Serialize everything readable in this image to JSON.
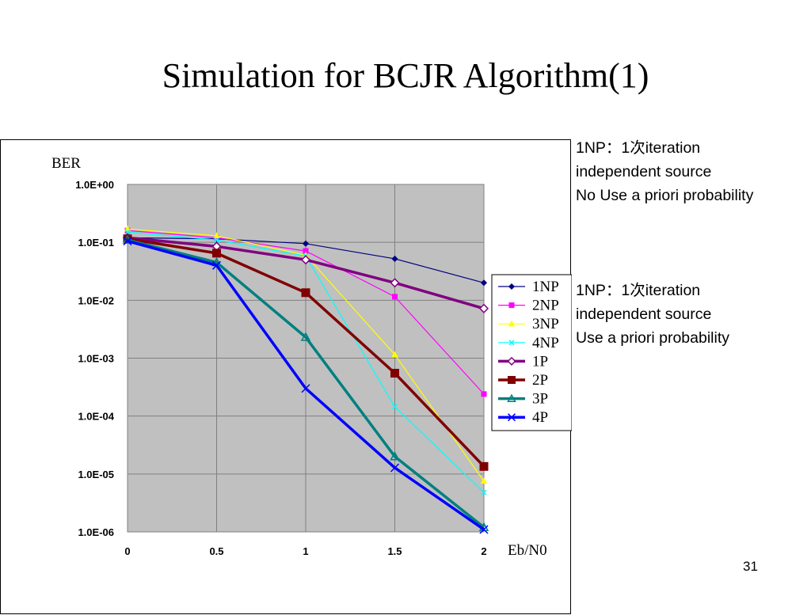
{
  "slide": {
    "title": "Simulation for BCJR Algorithm(1)",
    "page_number": "31"
  },
  "notes": [
    {
      "lines": [
        "1NP：1次iteration",
        "independent source",
        "No Use a priori probability"
      ]
    },
    {
      "lines": [
        "1NP：1次iteration",
        "independent source",
        "Use a priori probability"
      ]
    }
  ],
  "chart_data": {
    "type": "line",
    "title": "",
    "xlabel": "Eb/N0",
    "ylabel": "BER",
    "yscale": "log",
    "x": [
      0,
      0.5,
      1,
      1.5,
      2
    ],
    "x_tick_labels": [
      "0",
      "0.5",
      "1",
      "1.5",
      "2"
    ],
    "y_tick_values": [
      1,
      0.1,
      0.01,
      0.001,
      0.0001,
      1e-05,
      1e-06
    ],
    "y_tick_labels": [
      "1.0E+00",
      "1.0E-01",
      "1.0E-02",
      "1.0E-03",
      "1.0E-04",
      "1.0E-05",
      "1.0E-06"
    ],
    "xlim": [
      0,
      2
    ],
    "ylim": [
      1e-06,
      1
    ],
    "grid": true,
    "plot_background": "#c0c0c0",
    "legend_position": "right",
    "series": [
      {
        "name": "1NP",
        "color": "#000080",
        "marker": "diamond-filled",
        "line_weight": "thin",
        "values": [
          0.12,
          0.115,
          0.095,
          0.052,
          0.02
        ]
      },
      {
        "name": "2NP",
        "color": "#ff00ff",
        "marker": "square-filled",
        "line_weight": "thin",
        "values": [
          0.16,
          0.12,
          0.071,
          0.0115,
          0.00024
        ]
      },
      {
        "name": "3NP",
        "color": "#ffff00",
        "marker": "triangle-filled",
        "line_weight": "thin",
        "values": [
          0.17,
          0.13,
          0.06,
          0.00115,
          7.5e-06
        ]
      },
      {
        "name": "4NP",
        "color": "#00ffff",
        "marker": "x",
        "line_weight": "thin",
        "values": [
          0.15,
          0.11,
          0.058,
          0.000145,
          4.8e-06
        ]
      },
      {
        "name": "1P",
        "color": "#800080",
        "marker": "diamond-open",
        "line_weight": "thick",
        "values": [
          0.12,
          0.085,
          0.05,
          0.02,
          0.0072
        ]
      },
      {
        "name": "2P",
        "color": "#800000",
        "marker": "square-filled",
        "line_weight": "thick",
        "values": [
          0.115,
          0.065,
          0.0135,
          0.00055,
          1.35e-05
        ]
      },
      {
        "name": "3P",
        "color": "#008080",
        "marker": "triangle-open",
        "line_weight": "thick",
        "values": [
          0.11,
          0.045,
          0.0023,
          2e-05,
          1.2e-06
        ]
      },
      {
        "name": "4P",
        "color": "#0000ff",
        "marker": "x",
        "line_weight": "thick",
        "values": [
          0.105,
          0.04,
          0.0003,
          1.28e-05,
          1.1e-06
        ]
      }
    ]
  }
}
